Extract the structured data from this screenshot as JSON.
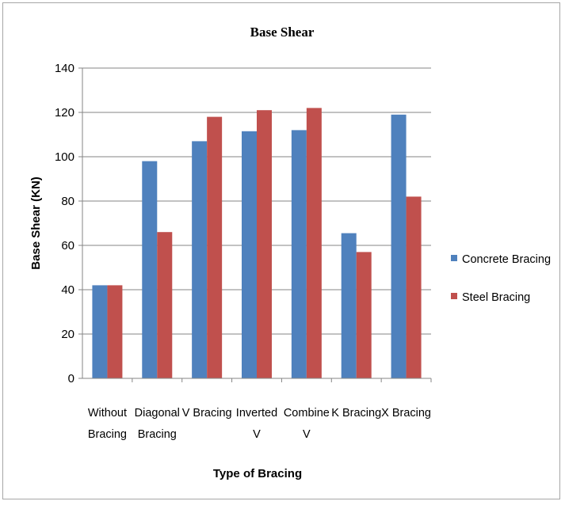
{
  "chart_data": {
    "type": "bar",
    "title": "Base Shear",
    "xlabel": "Type of Bracing",
    "ylabel": "Base Shear (KN)",
    "categories": [
      [
        "Without",
        "Bracing"
      ],
      [
        "Diagonal",
        "Bracing"
      ],
      [
        "V Bracing"
      ],
      [
        "Inverted",
        "V"
      ],
      [
        "Combine",
        "V"
      ],
      [
        "K Bracing"
      ],
      [
        "X Bracing"
      ]
    ],
    "series": [
      {
        "name": "Concrete Bracing",
        "color": "#4f81bd",
        "values": [
          42,
          98,
          107,
          111.5,
          112,
          65.5,
          119
        ]
      },
      {
        "name": "Steel Bracing",
        "color": "#c0504d",
        "values": [
          42,
          66,
          118,
          121,
          122,
          57,
          82
        ]
      }
    ],
    "ylim": [
      0,
      140
    ],
    "yticks": [
      0,
      20,
      40,
      60,
      80,
      100,
      120,
      140
    ],
    "grid": true,
    "legend_position": "right"
  }
}
